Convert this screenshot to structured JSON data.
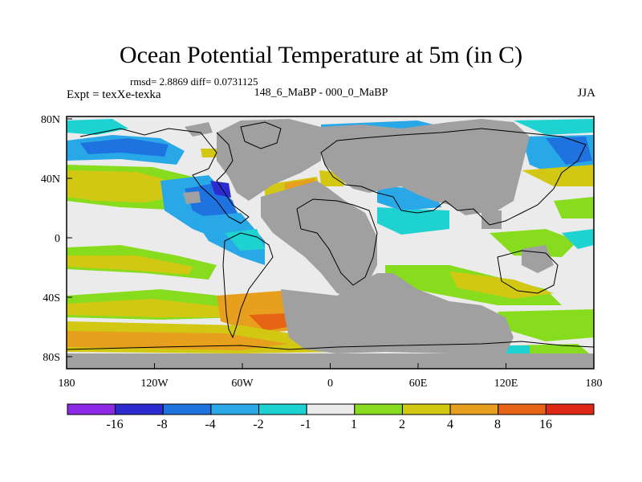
{
  "title": "Ocean Potential Temperature at 5m (in C)",
  "stats": "rmsd= 2.8869 diff= 0.0731125",
  "expt": "Expt = texXe-texka",
  "period": "148_6_MaBP - 000_0_MaBP",
  "season": "JJA",
  "axes": {
    "x_ticks": [
      "180",
      "120W",
      "60W",
      "0",
      "60E",
      "120E",
      "180"
    ],
    "y_ticks": [
      "80N",
      "40N",
      "0",
      "40S",
      "80S"
    ]
  },
  "colorbar": {
    "labels": [
      "-16",
      "-8",
      "-4",
      "-2",
      "-1",
      "1",
      "2",
      "4",
      "8",
      "16"
    ],
    "colors": [
      "#8c28e6",
      "#2b2bd0",
      "#1e73e0",
      "#28a8e6",
      "#1ed2d2",
      "#ebebeb",
      "#88dc1e",
      "#d2c814",
      "#e6a01e",
      "#e66414",
      "#dc2814"
    ]
  },
  "map_colors": {
    "land": "#a0a0a0",
    "coast": "#000000",
    "frame": "#000000"
  }
}
